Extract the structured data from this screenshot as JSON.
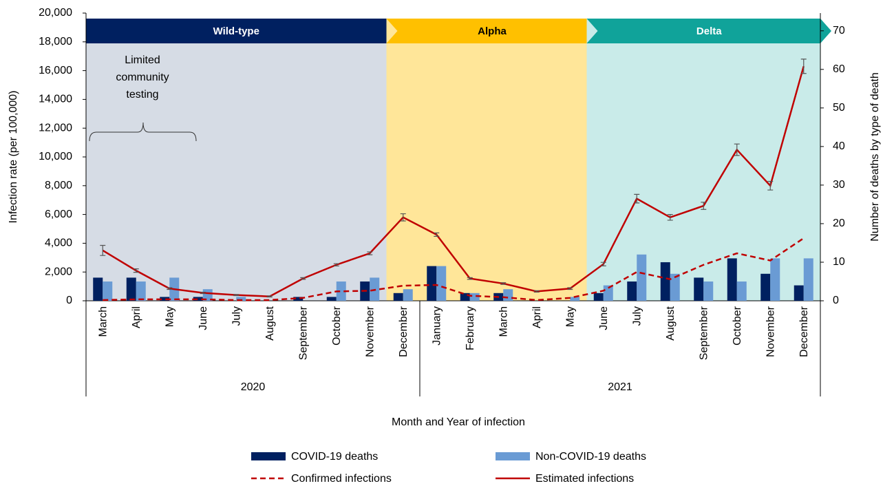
{
  "chart_data": {
    "type": "bar_line",
    "x_label": "Month and Year of infection",
    "y_label": "Infection rate (per 100,000)",
    "y2_label": "Number  of deaths by type of death",
    "categories": [
      "March",
      "April",
      "May",
      "June",
      "July",
      "August",
      "September",
      "October",
      "November",
      "December",
      "January",
      "February",
      "March",
      "April",
      "May",
      "June",
      "July",
      "August",
      "September",
      "October",
      "November",
      "December"
    ],
    "groups": [
      {
        "label": "2020",
        "count": 10
      },
      {
        "label": "2021",
        "count": 12
      }
    ],
    "variants": [
      {
        "name": "Wild-type",
        "span": [
          0,
          9
        ],
        "header_color": "#002060",
        "text_color": "#ffffff",
        "color": "#d6dce5"
      },
      {
        "name": "Alpha",
        "span": [
          9,
          15
        ],
        "header_color": "#ffc000",
        "text_color": "#000000",
        "color": "#ffe699"
      },
      {
        "name": "Delta",
        "span": [
          15,
          22
        ],
        "header_color": "#10a39a",
        "text_color": "#ffffff",
        "color": "#c9ebe9"
      }
    ],
    "annotation": [
      "Limited",
      "community",
      "testing"
    ],
    "series": [
      {
        "name": "COVID-19 deaths",
        "kind": "bar",
        "axis": "y2",
        "color": "#002060",
        "values": [
          6,
          6,
          1,
          1,
          0,
          0,
          1,
          1,
          5,
          2,
          9,
          2,
          2,
          0,
          0,
          2,
          5,
          10,
          6,
          11,
          7,
          4
        ]
      },
      {
        "name": "Non-COVID-19 deaths",
        "kind": "bar",
        "axis": "y2",
        "color": "#6a9bd4",
        "values": [
          5,
          5,
          6,
          3,
          1,
          0,
          0,
          5,
          6,
          3,
          9,
          2,
          3,
          0,
          1,
          4,
          12,
          7,
          5,
          5,
          11,
          11
        ]
      },
      {
        "name": "Confirmed infections",
        "kind": "line",
        "dashed": true,
        "color": "#c00000",
        "values": [
          50,
          100,
          100,
          100,
          50,
          50,
          200,
          650,
          700,
          1050,
          1100,
          350,
          250,
          50,
          200,
          700,
          2000,
          1500,
          2500,
          3300,
          2800,
          4350
        ]
      },
      {
        "name": "Estimated infections",
        "kind": "line",
        "dashed": false,
        "color": "#c00000",
        "values": [
          3500,
          2100,
          850,
          550,
          400,
          300,
          1550,
          2500,
          3300,
          5800,
          4600,
          1550,
          1200,
          650,
          850,
          2550,
          7100,
          5800,
          6600,
          10500,
          8000,
          16300
        ],
        "errors": [
          350,
          120,
          60,
          50,
          40,
          40,
          60,
          80,
          100,
          250,
          120,
          60,
          60,
          50,
          60,
          120,
          300,
          200,
          250,
          400,
          300,
          500
        ]
      }
    ],
    "ylim": [
      0,
      20000
    ],
    "yticks": [
      0,
      {
        "value": 2000,
        "label": "2,000"
      },
      {
        "value": 4000,
        "label": "4,000"
      },
      {
        "value": 6000,
        "label": "6,000"
      },
      {
        "value": 8000,
        "label": "8,000"
      },
      {
        "value": 10000,
        "label": "10,000"
      },
      {
        "value": 12000,
        "label": "12,000"
      },
      {
        "value": 14000,
        "label": "14,000"
      },
      {
        "value": 16000,
        "label": "16,000"
      },
      {
        "value": 18000,
        "label": "18,000"
      },
      {
        "value": 20000,
        "label": "20,000"
      }
    ],
    "y2lim": [
      0,
      74.6
    ],
    "y2ticks": [
      0,
      10,
      20,
      30,
      40,
      50,
      60,
      70
    ]
  }
}
